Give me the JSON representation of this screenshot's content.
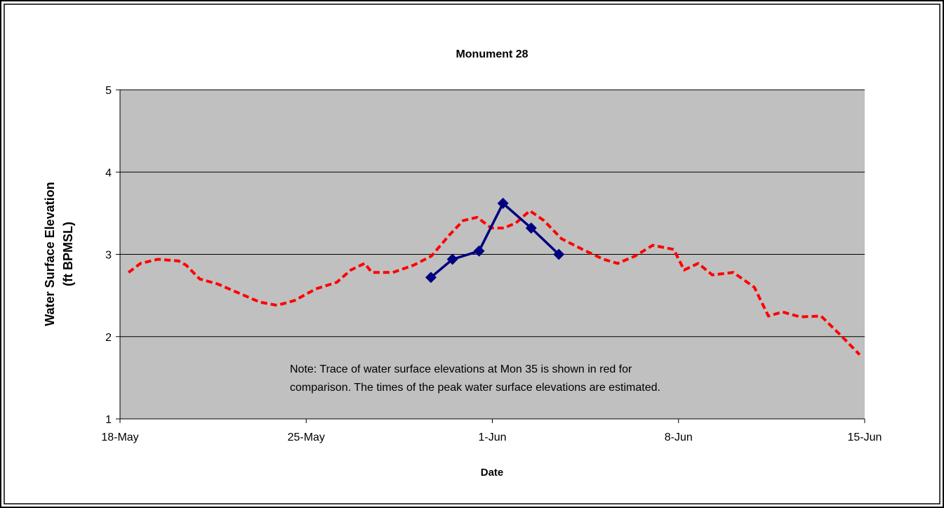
{
  "chart_data": {
    "type": "line",
    "title": "Monument 28",
    "x_label": "Date",
    "y_label": [
      "Water Surface Elevation",
      "(ft BPMSL)"
    ],
    "annotation": [
      "Note: Trace of water surface elevations at Mon 35 is shown in red for",
      "comparison.  The times of the peak water surface elevations are estimated."
    ],
    "xlim": [
      0,
      28
    ],
    "xticks": [
      {
        "value": 0,
        "label": "18-May"
      },
      {
        "value": 7,
        "label": "25-May"
      },
      {
        "value": 14,
        "label": "1-Jun"
      },
      {
        "value": 21,
        "label": "8-Jun"
      },
      {
        "value": 28,
        "label": "15-Jun"
      }
    ],
    "ylim": [
      1,
      5
    ],
    "yticks": [
      1,
      2,
      3,
      4,
      5
    ],
    "grid": true,
    "plot_background": "#c0c0c0",
    "series": [
      {
        "color": "#ff0000",
        "dashed": true,
        "markers": false,
        "x": [
          0.32,
          0.77,
          1.42,
          2.2,
          2.48,
          3.0,
          3.67,
          4.46,
          5.25,
          5.91,
          6.57,
          7.36,
          8.15,
          8.68,
          9.2,
          9.47,
          10.26,
          11.05,
          11.71,
          12.37,
          12.9,
          13.43,
          13.96,
          14.43,
          14.88,
          15.41,
          15.94,
          16.6,
          17.39,
          18.18,
          18.71,
          19.37,
          20.03,
          20.82,
          21.21,
          21.74,
          22.27,
          23.06,
          23.85,
          24.38,
          24.91,
          25.57,
          26.36,
          27.15,
          27.81
        ],
        "values": [
          2.78,
          2.89,
          2.94,
          2.92,
          2.87,
          2.7,
          2.64,
          2.53,
          2.42,
          2.38,
          2.44,
          2.58,
          2.66,
          2.81,
          2.89,
          2.78,
          2.78,
          2.87,
          2.98,
          3.23,
          3.41,
          3.45,
          3.32,
          3.32,
          3.38,
          3.53,
          3.41,
          3.19,
          3.06,
          2.94,
          2.89,
          2.98,
          3.11,
          3.06,
          2.81,
          2.89,
          2.75,
          2.78,
          2.6,
          2.25,
          2.3,
          2.24,
          2.25,
          2.0,
          1.78
        ]
      },
      {
        "color": "#000080",
        "dashed": false,
        "markers": true,
        "x": [
          11.69,
          12.5,
          13.5,
          14.4,
          15.46,
          16.5
        ],
        "values": [
          2.72,
          2.94,
          3.04,
          3.62,
          3.32,
          3.0
        ]
      }
    ]
  }
}
